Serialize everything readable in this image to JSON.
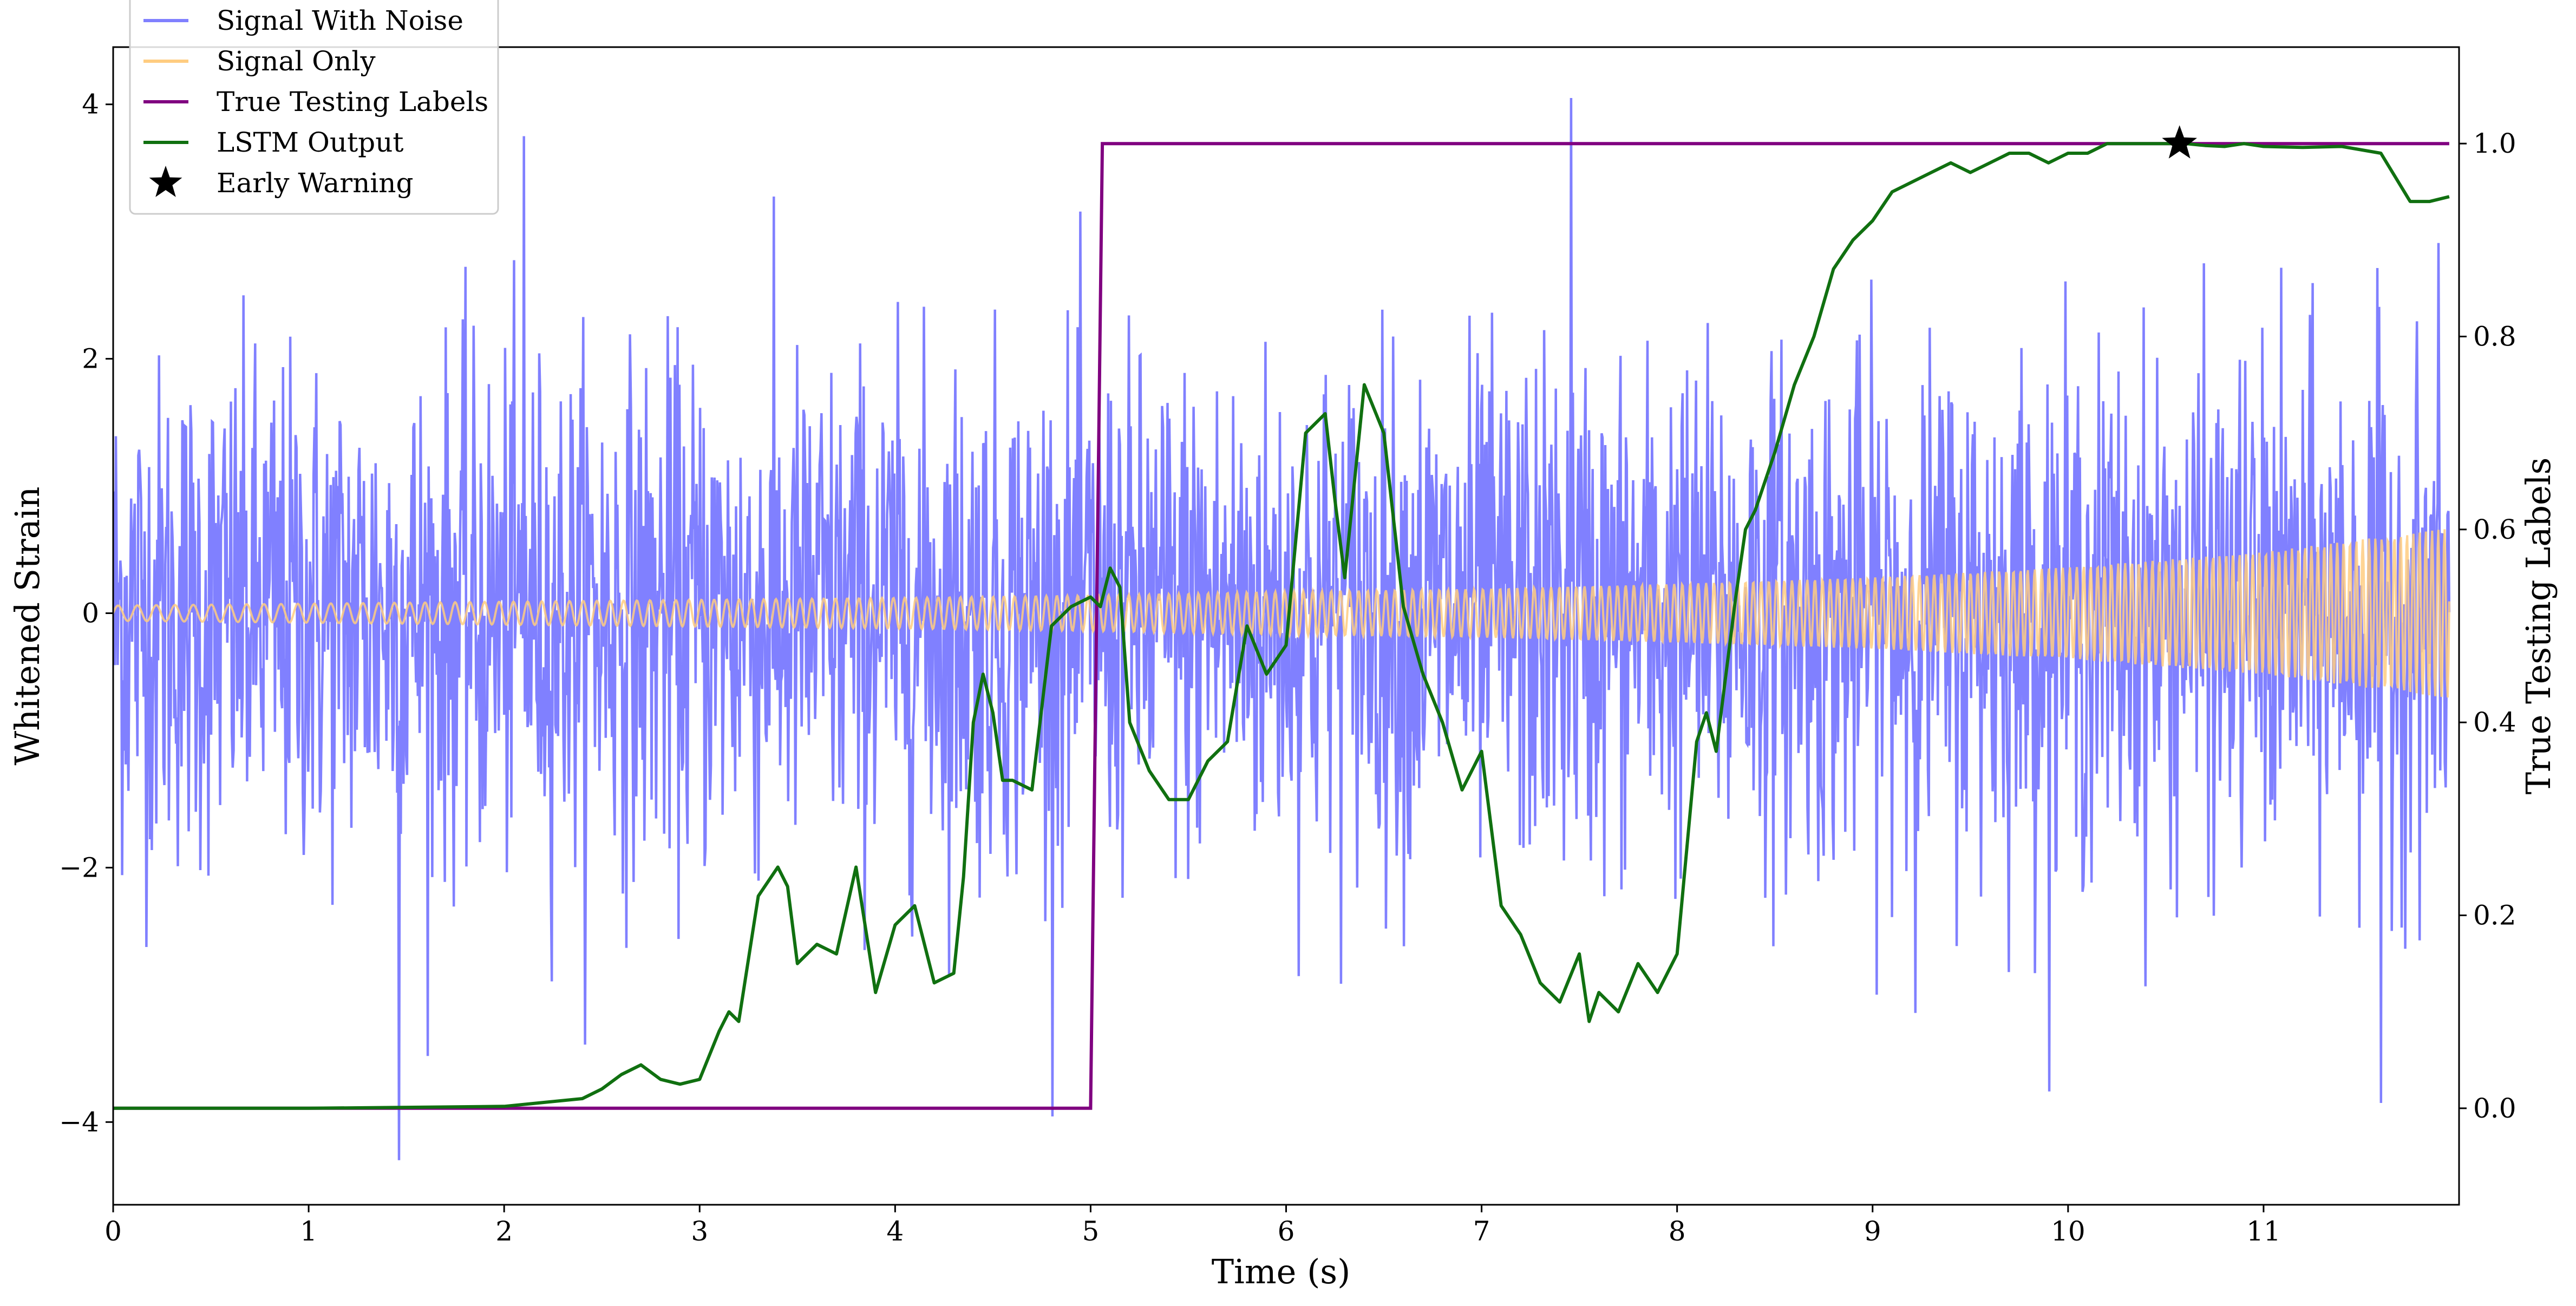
{
  "chart_data": {
    "type": "line",
    "title": "",
    "xlabel": "Time (s)",
    "ylabel_left": "Whitened Strain",
    "ylabel_right": "True Testing Labels",
    "xlim": [
      0,
      12
    ],
    "ylim_left": [
      -4.65,
      4.45
    ],
    "ylim_right": [
      -0.1,
      1.1
    ],
    "x_ticks": [
      0,
      1,
      2,
      3,
      4,
      5,
      6,
      7,
      8,
      9,
      10,
      11
    ],
    "x_tick_labels": [
      "0",
      "1",
      "2",
      "3",
      "4",
      "5",
      "6",
      "7",
      "8",
      "9",
      "10",
      "11"
    ],
    "y_left_ticks": [
      -4,
      -2,
      0,
      2,
      4
    ],
    "y_left_tick_labels": [
      "−4",
      "−2",
      "0",
      "2",
      "4"
    ],
    "y_right_ticks": [
      0.0,
      0.2,
      0.4,
      0.6,
      0.8,
      1.0
    ],
    "y_right_tick_labels": [
      "0.0",
      "0.2",
      "0.4",
      "0.6",
      "0.8",
      "1.0"
    ],
    "legend_position": "upper-left",
    "legend": [
      {
        "label": "Signal With Noise",
        "color": "#8080ff",
        "marker": "line"
      },
      {
        "label": "Signal Only",
        "color": "#ffcc80",
        "marker": "line"
      },
      {
        "label": "True Testing Labels",
        "color": "#800080",
        "marker": "line"
      },
      {
        "label": "LSTM Output",
        "color": "#107010",
        "marker": "line"
      },
      {
        "label": "Early Warning",
        "color": "#000000",
        "marker": "star"
      }
    ],
    "series": [
      {
        "name": "Signal With Noise",
        "axis": "left",
        "color": "#8080ff",
        "noise_std_approx": 1.0,
        "range_approx": [
          -4.3,
          4.05
        ],
        "notable_peaks": [
          {
            "x": 1.46,
            "y": -4.3
          },
          {
            "x": 7.46,
            "y": 4.05
          },
          {
            "x": 2.1,
            "y": 3.75
          },
          {
            "x": 11.6,
            "y": -3.85
          }
        ]
      },
      {
        "name": "Signal Only",
        "axis": "left",
        "color": "#ffcc80",
        "amplitude_envelope": {
          "x": [
            0,
            2,
            4,
            5,
            6,
            7,
            8,
            9,
            10,
            11,
            12
          ],
          "amp": [
            0.06,
            0.09,
            0.12,
            0.14,
            0.17,
            0.19,
            0.23,
            0.28,
            0.36,
            0.48,
            0.68
          ]
        }
      },
      {
        "name": "True Testing Labels",
        "axis": "right",
        "color": "#800080",
        "x": [
          0,
          5.0,
          5.06,
          11.95
        ],
        "y": [
          0.0,
          0.0,
          1.0,
          1.0
        ]
      },
      {
        "name": "LSTM Output",
        "axis": "right",
        "color": "#107010",
        "x": [
          0,
          1.0,
          1.5,
          2.0,
          2.2,
          2.4,
          2.5,
          2.6,
          2.7,
          2.8,
          2.9,
          3.0,
          3.1,
          3.15,
          3.2,
          3.3,
          3.4,
          3.45,
          3.5,
          3.6,
          3.7,
          3.8,
          3.9,
          4.0,
          4.1,
          4.2,
          4.3,
          4.35,
          4.4,
          4.45,
          4.5,
          4.55,
          4.6,
          4.7,
          4.8,
          4.9,
          5.0,
          5.05,
          5.1,
          5.15,
          5.2,
          5.3,
          5.4,
          5.5,
          5.6,
          5.7,
          5.8,
          5.9,
          6.0,
          6.1,
          6.2,
          6.25,
          6.3,
          6.4,
          6.5,
          6.6,
          6.7,
          6.8,
          6.9,
          7.0,
          7.1,
          7.2,
          7.3,
          7.4,
          7.5,
          7.55,
          7.6,
          7.7,
          7.8,
          7.9,
          8.0,
          8.1,
          8.15,
          8.2,
          8.3,
          8.35,
          8.4,
          8.5,
          8.6,
          8.7,
          8.8,
          8.9,
          9.0,
          9.1,
          9.2,
          9.3,
          9.4,
          9.5,
          9.6,
          9.7,
          9.8,
          9.9,
          10.0,
          10.1,
          10.2,
          10.3,
          10.4,
          10.5,
          10.6,
          10.7,
          10.8,
          10.9,
          11.0,
          11.2,
          11.4,
          11.6,
          11.75,
          11.85,
          11.95
        ],
        "y": [
          0.0,
          0.0,
          0.001,
          0.002,
          0.006,
          0.01,
          0.02,
          0.035,
          0.045,
          0.03,
          0.025,
          0.03,
          0.08,
          0.1,
          0.09,
          0.22,
          0.25,
          0.23,
          0.15,
          0.17,
          0.16,
          0.25,
          0.12,
          0.19,
          0.21,
          0.13,
          0.14,
          0.24,
          0.4,
          0.45,
          0.41,
          0.34,
          0.34,
          0.33,
          0.5,
          0.52,
          0.53,
          0.52,
          0.56,
          0.54,
          0.4,
          0.35,
          0.32,
          0.32,
          0.36,
          0.38,
          0.5,
          0.45,
          0.48,
          0.7,
          0.72,
          0.63,
          0.55,
          0.75,
          0.7,
          0.52,
          0.45,
          0.4,
          0.33,
          0.37,
          0.21,
          0.18,
          0.13,
          0.11,
          0.16,
          0.09,
          0.12,
          0.1,
          0.15,
          0.12,
          0.16,
          0.38,
          0.41,
          0.37,
          0.53,
          0.6,
          0.62,
          0.68,
          0.75,
          0.8,
          0.87,
          0.9,
          0.92,
          0.95,
          0.96,
          0.97,
          0.98,
          0.97,
          0.98,
          0.99,
          0.99,
          0.98,
          0.99,
          0.99,
          1.0,
          1.0,
          1.0,
          1.0,
          1.0,
          0.998,
          0.997,
          1.0,
          0.997,
          0.996,
          0.997,
          0.99,
          0.94,
          0.94,
          0.945
        ]
      },
      {
        "name": "Early Warning",
        "axis": "right",
        "color": "#000000",
        "marker": "star",
        "x": [
          10.57
        ],
        "y": [
          1.0
        ]
      }
    ]
  }
}
